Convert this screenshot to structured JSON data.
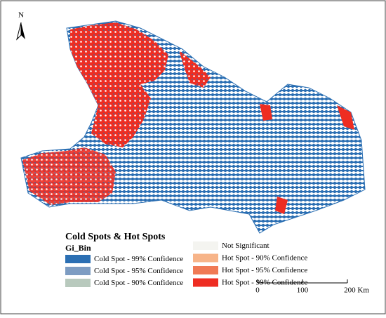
{
  "north_label": "N",
  "legend": {
    "title": "Cold Spots & Hot Spots",
    "subtitle": "Gi_Bin",
    "items": [
      {
        "label": "Cold Spot - 99% Confidence",
        "color": "#2b6fb3"
      },
      {
        "label": "Cold Spot - 95% Confidence",
        "color": "#7d9cc2"
      },
      {
        "label": "Cold Spot - 90% Confidence",
        "color": "#b8c9bd"
      },
      {
        "label": "Not Significant",
        "color": "#f4f4f0"
      },
      {
        "label": "Hot Spot - 90% Confidence",
        "color": "#f7b489"
      },
      {
        "label": "Hot Spot - 95% Confidence",
        "color": "#f07a55"
      },
      {
        "label": "Hot Spot - 99% Confidence",
        "color": "#ee2d22"
      }
    ]
  },
  "scale_bar": {
    "labels": [
      "0",
      "100",
      "200 Km"
    ]
  }
}
